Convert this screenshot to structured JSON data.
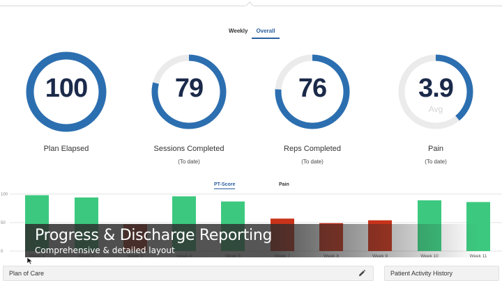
{
  "view_tabs": [
    {
      "label": "Weekly",
      "active": false
    },
    {
      "label": "Overall",
      "active": true
    }
  ],
  "metrics": [
    {
      "value": "100",
      "sub": "",
      "label": "Plan Elapsed",
      "note": "",
      "percent": 100
    },
    {
      "value": "79",
      "sub": "",
      "label": "Sessions Completed",
      "note": "(To date)",
      "percent": 79
    },
    {
      "value": "76",
      "sub": "",
      "label": "Reps Completed",
      "note": "(To date)",
      "percent": 76
    },
    {
      "value": "3.9",
      "sub": "Avg",
      "label": "Pain",
      "note": "(To date)",
      "percent": 39
    }
  ],
  "colors": {
    "ring_fill": "#2c6fb0",
    "ring_track": "#ebebeb",
    "bar_good": "#3cc97f",
    "bar_bad": "#c8331a",
    "accent": "#2a5f9e"
  },
  "chart_tabs": [
    {
      "label": "PT-Score",
      "active": true
    },
    {
      "label": "Pain",
      "active": false
    }
  ],
  "chart_data": {
    "type": "bar",
    "categories": [
      "Week 1",
      "Week 2",
      "Week 3",
      "Week 4",
      "Week 5",
      "Week 7",
      "Week 8",
      "Week 9",
      "Week 10",
      "Week 11"
    ],
    "values": [
      98,
      94,
      47,
      96,
      87,
      57,
      49,
      54,
      89,
      86
    ],
    "status": [
      "good",
      "good",
      "bad",
      "good",
      "good",
      "bad",
      "bad",
      "bad",
      "good",
      "good"
    ],
    "ytick_labels": [
      "100",
      "50",
      "0"
    ],
    "ylim": [
      0,
      100
    ],
    "grid": true
  },
  "banner": {
    "title": "Progress & Discharge Reporting",
    "subtitle": "Comprehensive & detailed layout"
  },
  "panels": {
    "left_title": "Plan of Care",
    "right_title": "Patient Activity History"
  }
}
